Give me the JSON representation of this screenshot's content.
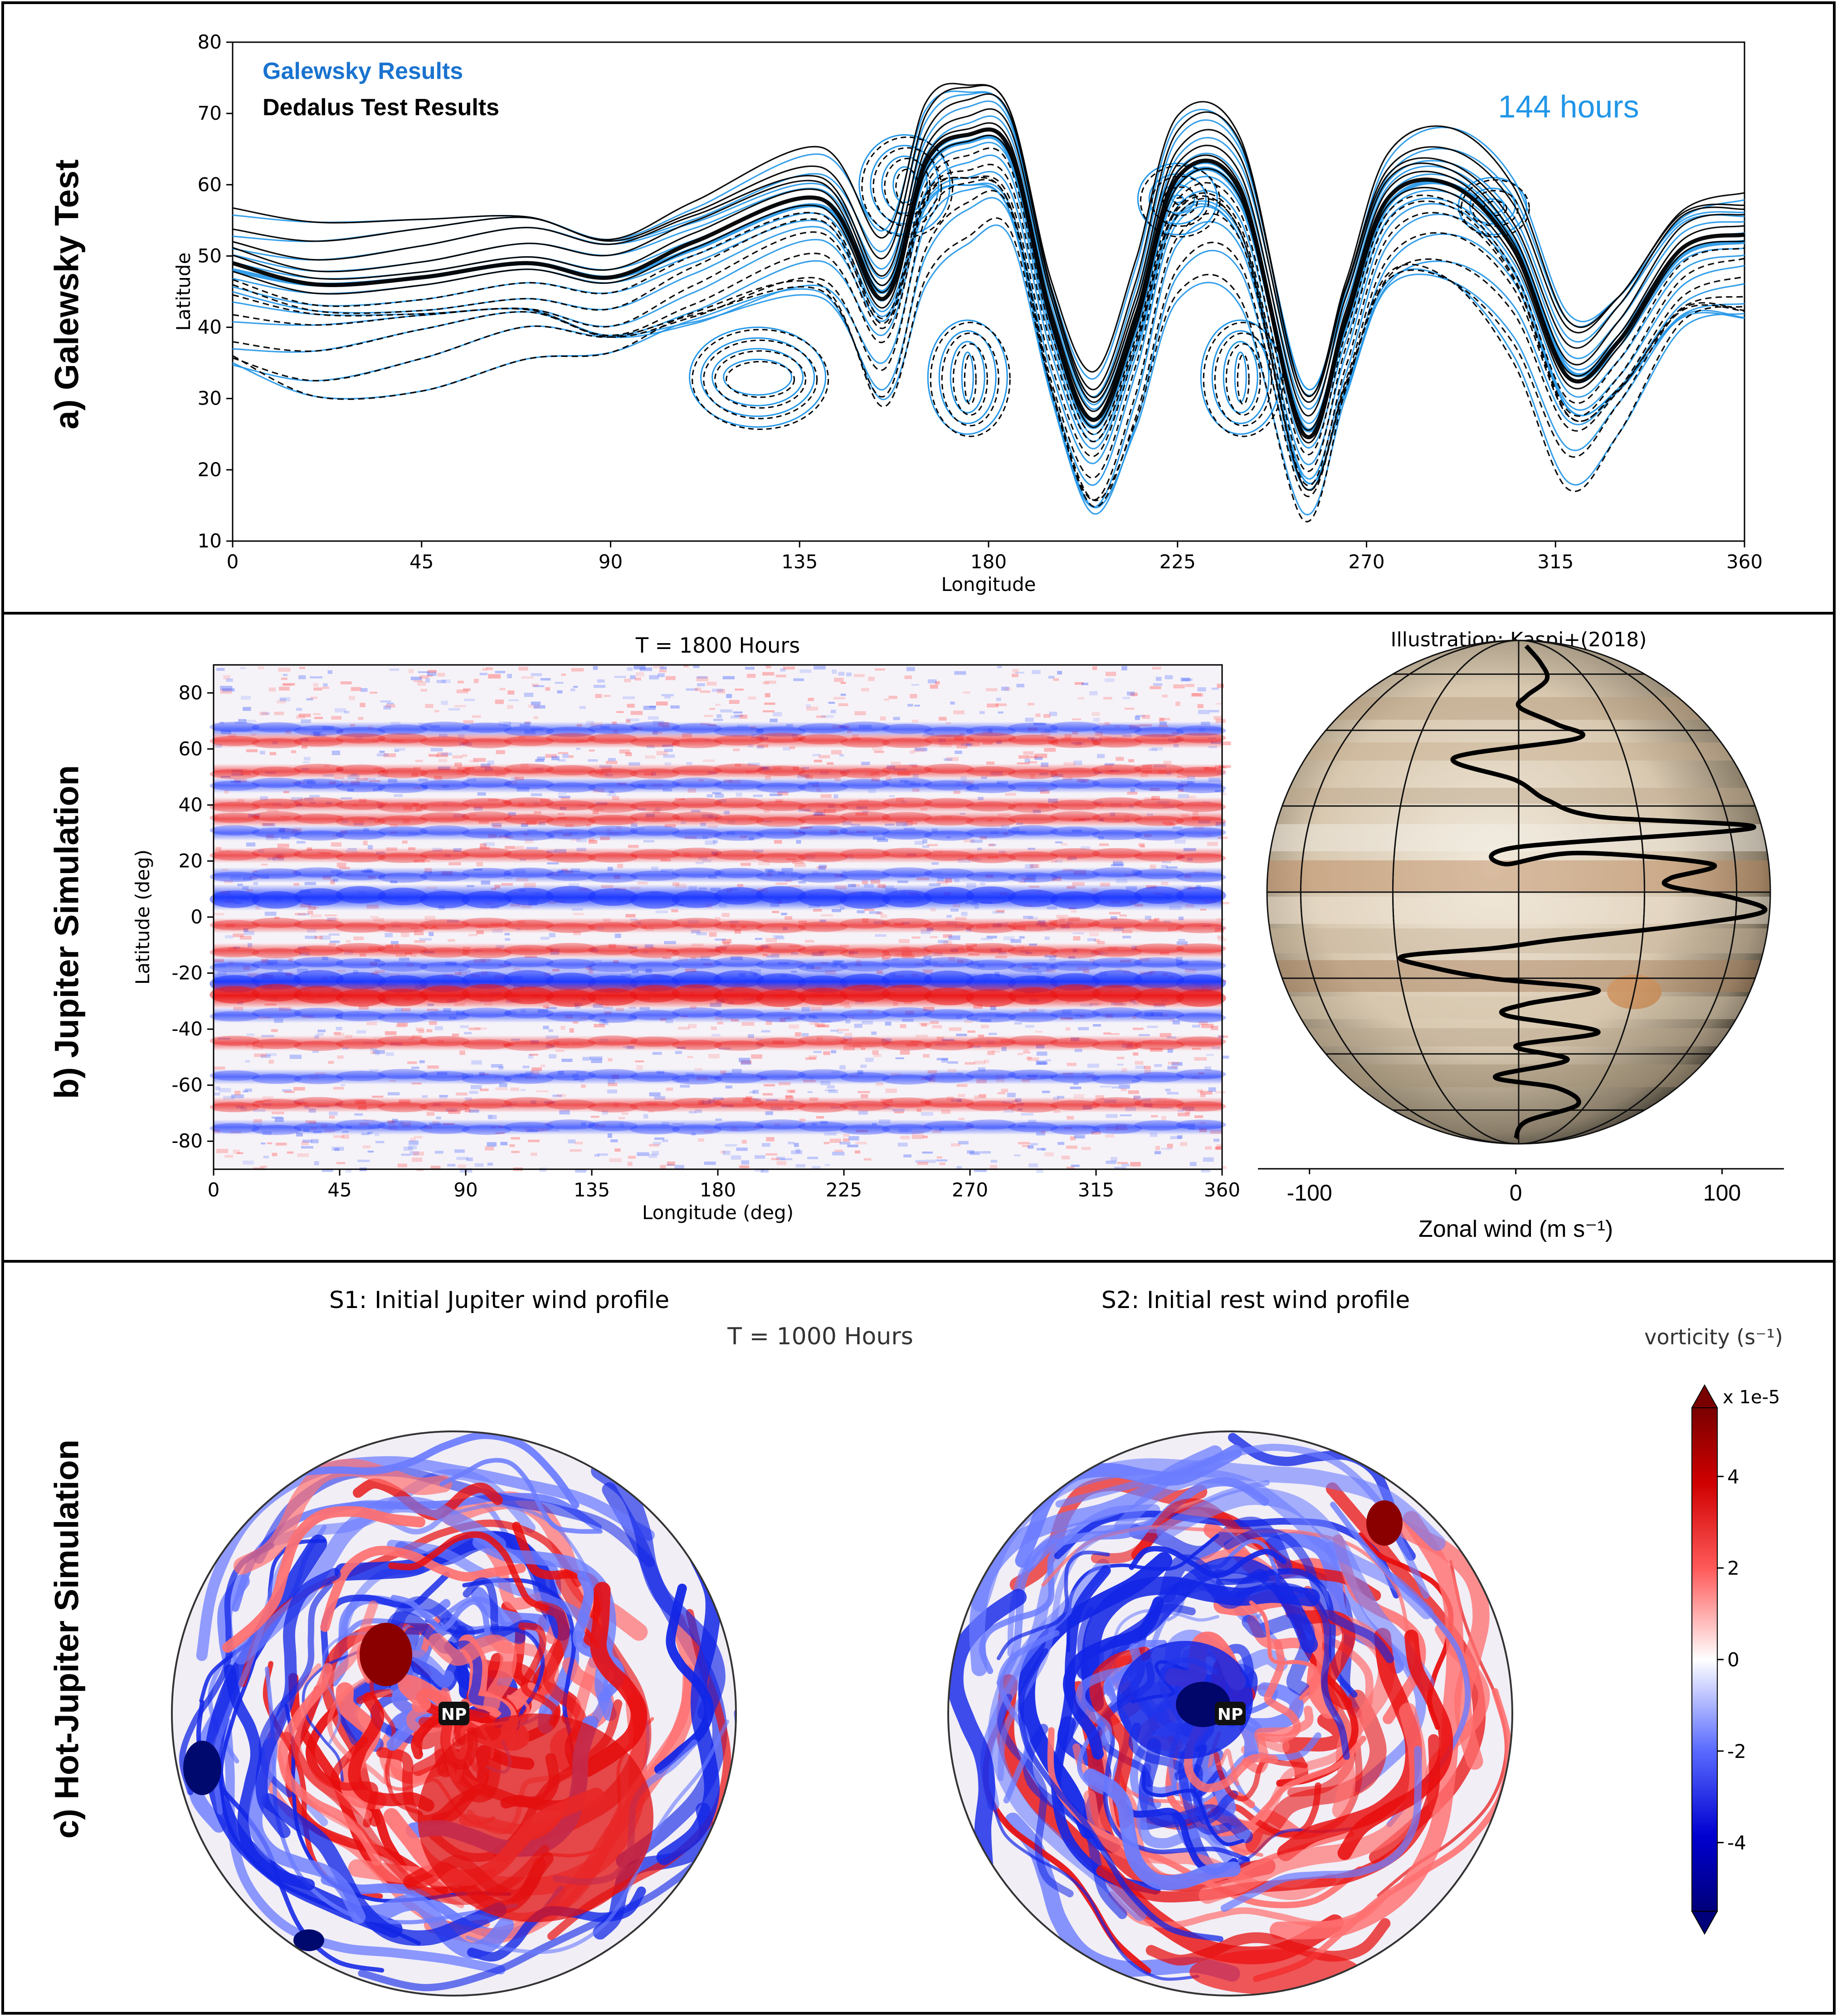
{
  "panels": {
    "a": {
      "side_title": "a) Galewsky Test",
      "legend": [
        {
          "label": "Galewsky Results",
          "color": "#1a73cf"
        },
        {
          "label": "Dedalus Test Results",
          "color": "#000000"
        }
      ],
      "time_label": "144 hours",
      "time_color": "#2196e8"
    },
    "b": {
      "side_title": "b) Jupiter Simulation",
      "map_title": "T = 1800 Hours",
      "illustration_title": "Illustration: Kaspi+(2018)"
    },
    "c": {
      "side_title": "c) Hot-Jupiter Simulation",
      "s1_title": "S1: Initial Jupiter wind profile",
      "s2_title": "S2: Initial rest wind profile",
      "time_label": "T = 1000 Hours",
      "pole_label": "NP",
      "colorbar_label": "vorticity (s⁻¹)",
      "colorbar_multiplier": "x 1e-5"
    }
  },
  "chart_data": [
    {
      "type": "line",
      "panel": "a",
      "xlabel": "Longitude",
      "ylabel": "Latitude",
      "xlim": [
        0,
        360
      ],
      "ylim": [
        10,
        80
      ],
      "xticks": [
        "0",
        "45",
        "90",
        "135",
        "180",
        "225",
        "270",
        "315",
        "360"
      ],
      "yticks": [
        "10",
        "20",
        "30",
        "40",
        "50",
        "60",
        "70",
        "80"
      ],
      "series": [
        {
          "name": "Galewsky Results",
          "color": "#2196e8",
          "x": [
            0,
            20,
            45,
            70,
            90,
            110,
            140,
            155,
            165,
            175,
            185,
            195,
            205,
            215,
            225,
            240,
            255,
            265,
            275,
            290,
            305,
            318,
            330,
            345,
            360
          ],
          "y": [
            48,
            46,
            47,
            49,
            47,
            51,
            57,
            45,
            62,
            66,
            64,
            40,
            26,
            40,
            60,
            58,
            26,
            40,
            57,
            60,
            52,
            34,
            38,
            50,
            52
          ]
        },
        {
          "name": "Dedalus Test Results",
          "color": "#000000",
          "x": [
            0,
            20,
            45,
            70,
            90,
            110,
            140,
            155,
            165,
            175,
            185,
            195,
            205,
            215,
            225,
            240,
            255,
            265,
            275,
            290,
            305,
            318,
            330,
            345,
            360
          ],
          "y": [
            49,
            46,
            47,
            49,
            47,
            52,
            58,
            44,
            63,
            67,
            65,
            41,
            27,
            41,
            61,
            59,
            25,
            41,
            58,
            60,
            51,
            33,
            38,
            51,
            53
          ]
        }
      ]
    },
    {
      "type": "heatmap",
      "panel": "b",
      "title": "T = 1800 Hours",
      "xlabel": "Longitude (deg)",
      "ylabel": "Latitude (deg)",
      "xlim": [
        0,
        360
      ],
      "ylim": [
        -90,
        90
      ],
      "xticks": [
        "0",
        "45",
        "90",
        "135",
        "180",
        "225",
        "270",
        "315",
        "360"
      ],
      "yticks": [
        "80",
        "60",
        "40",
        "20",
        "0",
        "-20",
        "-40",
        "-60",
        "-80"
      ],
      "bands": [
        {
          "lat": 67,
          "sign": -1
        },
        {
          "lat": 63,
          "sign": 1
        },
        {
          "lat": 52,
          "sign": 1
        },
        {
          "lat": 47,
          "sign": -1
        },
        {
          "lat": 40,
          "sign": 1
        },
        {
          "lat": 35,
          "sign": 1
        },
        {
          "lat": 30,
          "sign": -1
        },
        {
          "lat": 22,
          "sign": 1
        },
        {
          "lat": 15,
          "sign": -1
        },
        {
          "lat": 7,
          "sign": -1
        },
        {
          "lat": -3,
          "sign": 1
        },
        {
          "lat": -12,
          "sign": 1
        },
        {
          "lat": -17,
          "sign": -1
        },
        {
          "lat": -23,
          "sign": -1
        },
        {
          "lat": -28,
          "sign": 1
        },
        {
          "lat": -35,
          "sign": -1
        },
        {
          "lat": -45,
          "sign": 1
        },
        {
          "lat": -57,
          "sign": -1
        },
        {
          "lat": -67,
          "sign": 1
        },
        {
          "lat": -75,
          "sign": -1
        }
      ]
    },
    {
      "type": "line",
      "panel": "b-illustration",
      "xlabel": "Zonal wind (m s⁻¹)",
      "xlim": [
        -125,
        130
      ],
      "ylim": [
        -90,
        90
      ],
      "xticks": [
        "-100",
        "0",
        "100"
      ],
      "series": [
        {
          "name": "",
          "color": "#000000",
          "x": [
            5,
            12,
            15,
            5,
            2,
            20,
            30,
            -30,
            0,
            15,
            40,
            115,
            0,
            -5,
            30,
            95,
            75,
            75,
            105,
            120,
            80,
            20,
            -10,
            -55,
            -40,
            -10,
            40,
            5,
            -5,
            40,
            0,
            25,
            -10,
            20,
            30,
            5,
            0
          ],
          "y": [
            88,
            82,
            76,
            70,
            66,
            60,
            55,
            48,
            40,
            33,
            27,
            23,
            16,
            10,
            14,
            10,
            5,
            2,
            -2,
            -7,
            -12,
            -17,
            -20,
            -23,
            -27,
            -31,
            -35,
            -40,
            -44,
            -50,
            -55,
            -60,
            -66,
            -70,
            -76,
            -82,
            -88
          ]
        }
      ]
    },
    {
      "type": "heatmap",
      "panel": "c",
      "colorbar_ticks": [
        "4",
        "2",
        "0",
        "-2",
        "-4"
      ],
      "colorbar_range": [
        -5.5,
        5.5
      ],
      "colorbar_multiplier": "x 1e-5"
    }
  ]
}
